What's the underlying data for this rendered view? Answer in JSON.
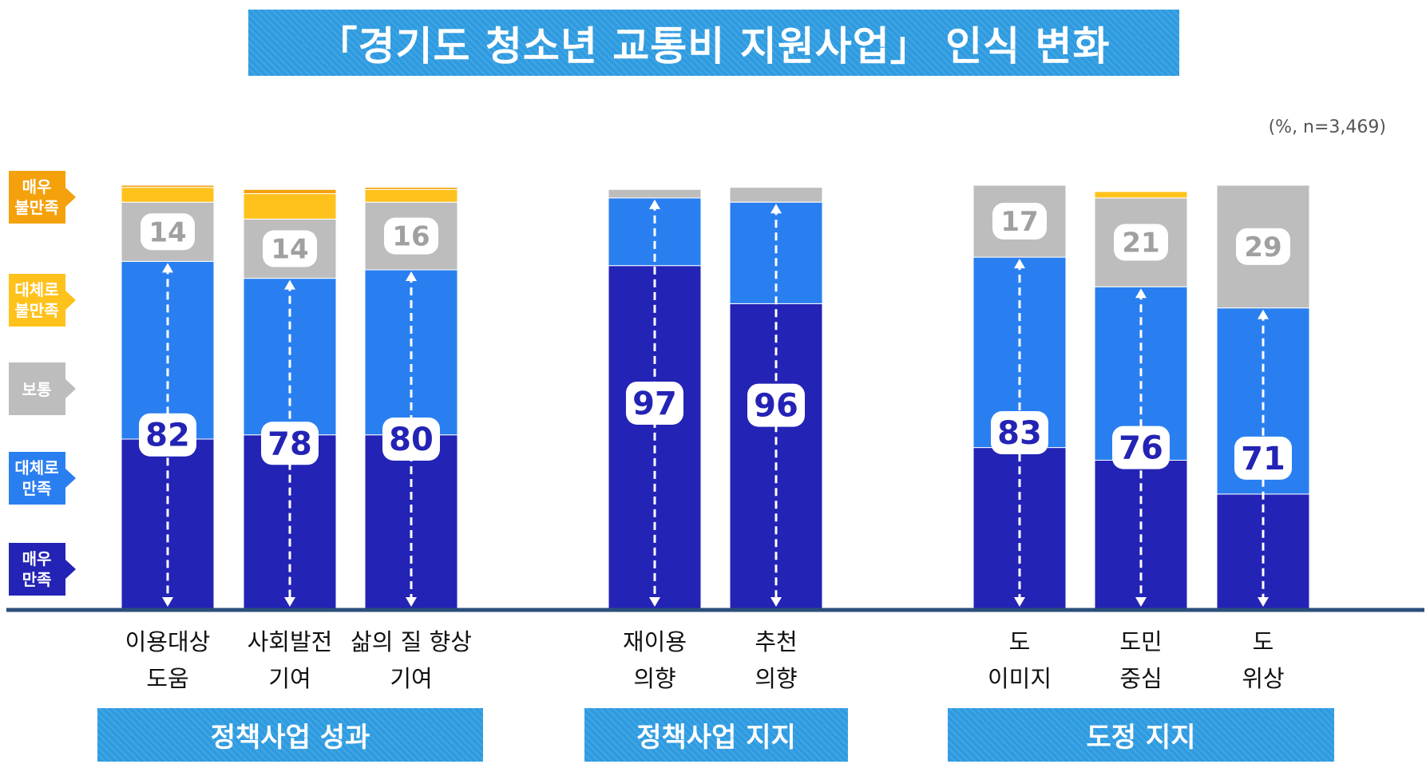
{
  "title": "「경기도 청소년 교통비 지원사업」  인식 변화",
  "unit_note": "(%, n=3,469)",
  "colors": {
    "very_dissatisfied": "#f5a10c",
    "somewhat_dissatisfied": "#ffc21c",
    "neutral": "#bdbdbd",
    "somewhat_satisfied": "#2a7ff0",
    "very_satisfied": "#2323b5",
    "band": "#2e9be0",
    "axis": "#2b4f7a"
  },
  "legend": [
    {
      "key": "very_dissatisfied",
      "lines": [
        "매우",
        "불만족"
      ]
    },
    {
      "key": "somewhat_dissatisfied",
      "lines": [
        "대체로",
        "불만족"
      ]
    },
    {
      "key": "neutral",
      "lines": [
        "보통"
      ]
    },
    {
      "key": "somewhat_satisfied",
      "lines": [
        "대체로",
        "만족"
      ]
    },
    {
      "key": "very_satisfied",
      "lines": [
        "매우",
        "만족"
      ]
    }
  ],
  "groups": [
    {
      "label": "정책사업 성과",
      "bars": [
        0,
        1,
        2
      ]
    },
    {
      "label": "정책사업 지지",
      "bars": [
        3,
        4
      ]
    },
    {
      "label": "도정 지지",
      "bars": [
        5,
        6,
        7
      ]
    }
  ],
  "chart_data": {
    "type": "bar",
    "stacked": true,
    "categories": [
      [
        "이용대상",
        "도움"
      ],
      [
        "사회발전",
        "기여"
      ],
      [
        "삶의 질 향상",
        "기여"
      ],
      [
        "재이용",
        "의향"
      ],
      [
        "추천",
        "의향"
      ],
      [
        "도",
        "이미지"
      ],
      [
        "도민",
        "중심"
      ],
      [
        "도",
        "위상"
      ]
    ],
    "series": [
      {
        "name": "매우 만족",
        "key": "very_satisfied",
        "values": [
          40,
          41,
          41,
          81,
          72,
          38,
          35,
          27
        ]
      },
      {
        "name": "대체로 만족",
        "key": "somewhat_satisfied",
        "values": [
          42,
          37,
          39,
          16,
          24,
          45,
          41,
          44
        ]
      },
      {
        "name": "보통",
        "key": "neutral",
        "values": [
          14,
          14,
          16,
          2,
          3.5,
          17,
          21,
          29
        ]
      },
      {
        "name": "대체로 불만족",
        "key": "somewhat_dissatisfied",
        "values": [
          3.5,
          6,
          3,
          0,
          0,
          0,
          1.5,
          0
        ]
      },
      {
        "name": "매우 불만족",
        "key": "very_dissatisfied",
        "values": [
          0.5,
          1,
          0.5,
          0,
          0,
          0,
          0,
          0
        ]
      }
    ],
    "satisfied_total": [
      82,
      78,
      80,
      97,
      96,
      83,
      76,
      71
    ],
    "neutral_labels": [
      "14",
      "14",
      "16",
      null,
      null,
      "17",
      "21",
      "29"
    ],
    "ylim": [
      0,
      100
    ],
    "grid": false
  }
}
